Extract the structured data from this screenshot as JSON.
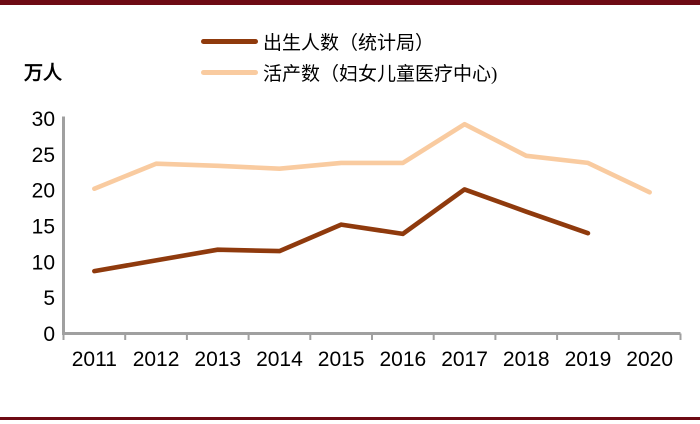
{
  "accent": {
    "top_bar_color": "#6E0B14",
    "bottom_bar_color": "#6E0B14",
    "axis_color": "#A0A0A0",
    "text_color": "#000000"
  },
  "chart_data": {
    "type": "line",
    "title": "",
    "xlabel": "",
    "ylabel": "万人",
    "ylim": [
      0,
      30
    ],
    "yticks": [
      0,
      5,
      10,
      15,
      20,
      25,
      30
    ],
    "grid": false,
    "legend_position": "top",
    "x": [
      "2011",
      "2012",
      "2013",
      "2014",
      "2015",
      "2016",
      "2017",
      "2018",
      "2019",
      "2020"
    ],
    "series": [
      {
        "name": "出生人数（统计局）",
        "color": "#8F3A0D",
        "values": [
          8.7,
          10.2,
          11.7,
          11.5,
          15.2,
          13.9,
          20.1,
          17.0,
          14.0,
          null
        ]
      },
      {
        "name": "活产数（妇女儿童医疗中心)",
        "color": "#F9CBA0",
        "values": [
          20.2,
          23.7,
          23.4,
          23.0,
          23.8,
          23.8,
          29.2,
          24.8,
          23.8,
          19.7
        ]
      }
    ]
  }
}
